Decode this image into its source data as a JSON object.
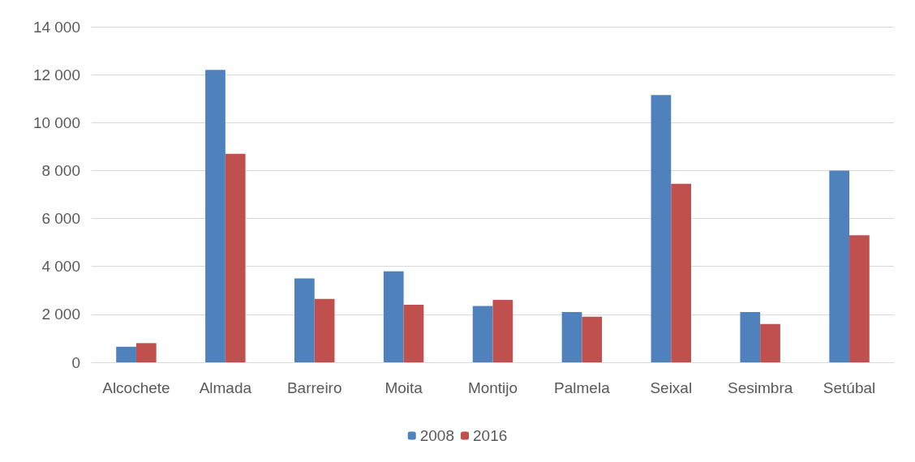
{
  "chart_data": {
    "type": "bar",
    "categories": [
      "Alcochete",
      "Almada",
      "Barreiro",
      "Moita",
      "Montijo",
      "Palmela",
      "Seixal",
      "Sesimbra",
      "Setúbal"
    ],
    "series": [
      {
        "name": "2008",
        "color": "#4f81bd",
        "values": [
          650,
          12200,
          3500,
          3800,
          2350,
          2100,
          11150,
          2100,
          8000
        ]
      },
      {
        "name": "2016",
        "color": "#c0504d",
        "values": [
          800,
          8700,
          2650,
          2400,
          2600,
          1900,
          7450,
          1600,
          5300
        ]
      }
    ],
    "ylim": [
      0,
      14000
    ],
    "yticks": [
      {
        "value": 0,
        "label": "0"
      },
      {
        "value": 2000,
        "label": "2 000"
      },
      {
        "value": 4000,
        "label": "4 000"
      },
      {
        "value": 6000,
        "label": "6 000"
      },
      {
        "value": 8000,
        "label": "8 000"
      },
      {
        "value": 10000,
        "label": "10 000"
      },
      {
        "value": 12000,
        "label": "12 000"
      },
      {
        "value": 14000,
        "label": "14 000"
      }
    ],
    "grid": "y",
    "legend": "bottom"
  }
}
